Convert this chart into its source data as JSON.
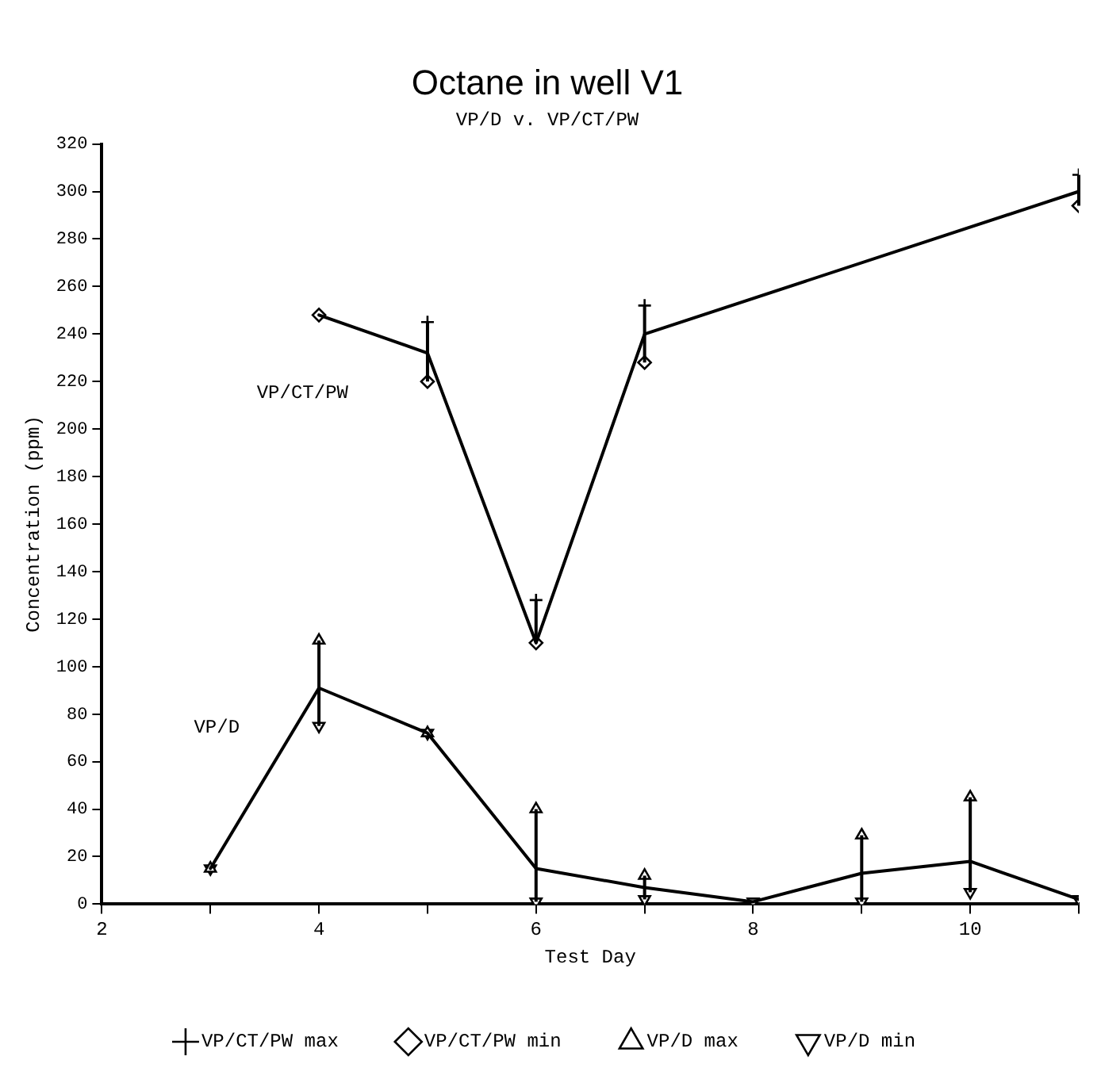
{
  "chart_data": {
    "type": "line",
    "title": "Octane in well V1",
    "subtitle": "VP/D v. VP/CT/PW",
    "xlabel": "Test Day",
    "ylabel": "Concentration (ppm)",
    "xlim": [
      2,
      11
    ],
    "xticks": [
      2,
      {
        "value": 3,
        "label": null
      },
      4,
      {
        "value": 5,
        "label": null
      },
      6,
      {
        "value": 7,
        "label": null
      },
      8,
      {
        "value": 9,
        "label": null
      },
      10,
      {
        "value": 11,
        "label": null
      }
    ],
    "ylim": [
      0,
      320
    ],
    "yticks": [
      0,
      20,
      40,
      60,
      80,
      100,
      120,
      140,
      160,
      180,
      200,
      220,
      240,
      260,
      280,
      300,
      320
    ],
    "grid": false,
    "legend": "bottom",
    "line_style": "solid",
    "series": [
      {
        "name": "VP/CT/PW",
        "color": "#000000",
        "marker": "none",
        "x": [
          4,
          5,
          6,
          7,
          11
        ],
        "values": [
          248,
          232,
          110,
          240,
          300
        ],
        "errors": [
          null,
          [
            220,
            245
          ],
          [
            110,
            128
          ],
          [
            228,
            252
          ],
          [
            294,
            307
          ]
        ]
      },
      {
        "name": "VP/D",
        "color": "#000000",
        "marker": "none",
        "x": [
          3,
          4,
          5,
          6,
          7,
          8,
          9,
          10,
          11
        ],
        "values": [
          15,
          91,
          72,
          15,
          7,
          1,
          13,
          18,
          2
        ],
        "errors": [
          null,
          [
            75,
            111
          ],
          null,
          [
            1,
            40
          ],
          [
            2,
            12
          ],
          null,
          [
            1,
            29
          ],
          [
            5,
            45
          ],
          null
        ]
      },
      {
        "name": "VP/CT/PW max",
        "type": "scatter",
        "color": "#000000",
        "marker": "cross",
        "x": [
          5,
          6,
          7,
          11
        ],
        "values": [
          245,
          128,
          252,
          307
        ]
      },
      {
        "name": "VP/CT/PW min",
        "type": "scatter",
        "color": "#000000",
        "marker": "diamond",
        "x": [
          4,
          5,
          6,
          7,
          11
        ],
        "values": [
          248,
          220,
          110,
          228,
          294
        ]
      },
      {
        "name": "VP/D max",
        "type": "scatter",
        "color": "#000000",
        "marker": "triangle",
        "x": [
          3,
          4,
          5,
          6,
          7,
          9,
          10
        ],
        "values": [
          15,
          111,
          72,
          40,
          12,
          29,
          45
        ]
      },
      {
        "name": "VP/D min",
        "type": "scatter",
        "color": "#000000",
        "marker": "triangle-down",
        "x": [
          3,
          4,
          5,
          6,
          7,
          8,
          9,
          10,
          11
        ],
        "values": [
          15,
          75,
          72,
          1,
          2,
          1,
          1,
          5,
          2
        ]
      }
    ]
  }
}
